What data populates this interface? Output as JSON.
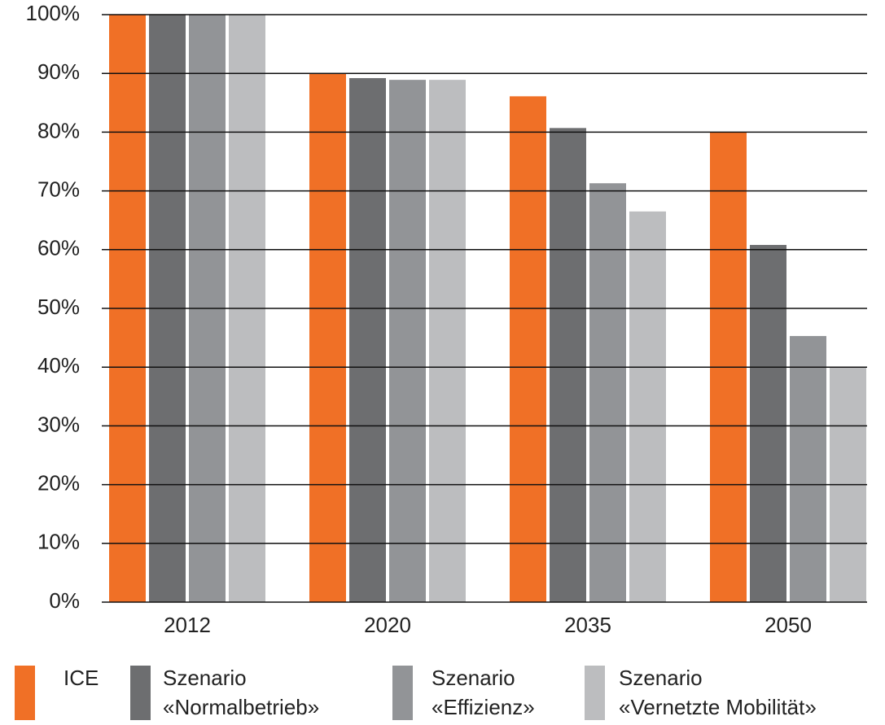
{
  "chart_data": {
    "type": "bar",
    "categories": [
      "2012",
      "2020",
      "2035",
      "2050"
    ],
    "series": [
      {
        "name": "ICE",
        "color": "#f07026",
        "values": [
          100,
          90,
          86.1,
          80
        ]
      },
      {
        "name": "Szenario\n«Normalbetrieb»",
        "color": "#6d6e70",
        "values": [
          100,
          89.2,
          80.7,
          60.8
        ]
      },
      {
        "name": "Szenario\n«Effizienz»",
        "color": "#929497",
        "values": [
          100,
          88.9,
          71.3,
          45.3
        ]
      },
      {
        "name": "Szenario\n«Vernetzte Mobilität»",
        "color": "#bcbdbf",
        "values": [
          100,
          88.9,
          66.5,
          40
        ]
      }
    ],
    "ylim": [
      0,
      100
    ],
    "yticks": [
      {
        "value": 0,
        "label": "0%"
      },
      {
        "value": 10,
        "label": "10%"
      },
      {
        "value": 20,
        "label": "20%"
      },
      {
        "value": 30,
        "label": "30%"
      },
      {
        "value": 40,
        "label": "40%"
      },
      {
        "value": 50,
        "label": "50%"
      },
      {
        "value": 60,
        "label": "60%"
      },
      {
        "value": 70,
        "label": "70%"
      },
      {
        "value": 80,
        "label": "80%"
      },
      {
        "value": 90,
        "label": "90%"
      },
      {
        "value": 100,
        "label": "100%"
      }
    ],
    "grid": true
  }
}
